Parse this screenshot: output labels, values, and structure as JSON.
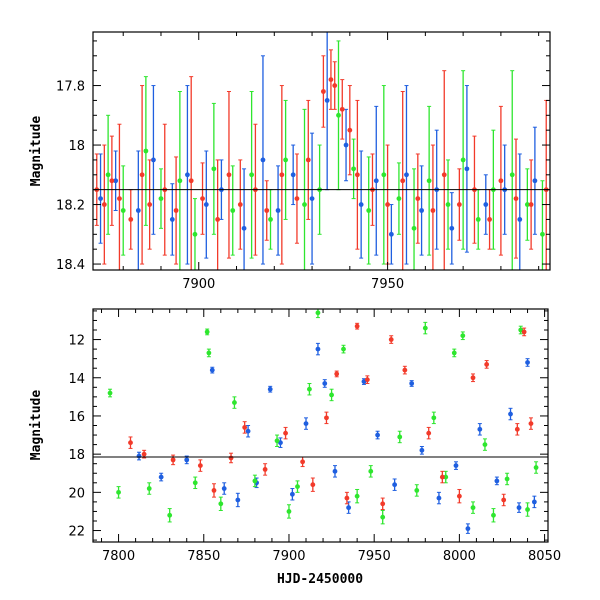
{
  "colors": {
    "blue": "#1f5fe0",
    "green": "#2ee62e",
    "red": "#f23a2a",
    "axis": "#000000"
  },
  "chart_data": [
    {
      "type": "scatter",
      "panel": "top",
      "xlabel": "",
      "ylabel": "Magnitude",
      "xlim": [
        7872,
        7993
      ],
      "ylim": [
        18.42,
        17.62
      ],
      "y_inverted": true,
      "grid": false,
      "reference_line_y": 18.15,
      "xticks": [
        7900,
        7950
      ],
      "yticks": [
        17.8,
        18,
        18.2,
        18.4
      ],
      "xtick_labels": [
        "7900",
        "7950"
      ],
      "ytick_labels": [
        "17.8",
        "18",
        "18.2",
        "18.4"
      ],
      "series": [
        {
          "color": "blue",
          "x": [
            7874,
            7878,
            7884,
            7888,
            7893,
            7897,
            7902,
            7906,
            7912,
            7917,
            7921,
            7925,
            7930,
            7934,
            7939,
            7943,
            7947,
            7951,
            7955,
            7959,
            7963,
            7967,
            7971,
            7976,
            7981,
            7985,
            7989
          ],
          "y": [
            18.18,
            18.12,
            18.22,
            18.05,
            18.25,
            18.1,
            18.2,
            18.15,
            18.28,
            18.05,
            18.22,
            18.1,
            18.18,
            17.85,
            18.0,
            18.2,
            18.12,
            18.3,
            18.1,
            18.22,
            18.15,
            18.28,
            18.08,
            18.2,
            18.15,
            18.25,
            18.12
          ],
          "yerr": [
            0.15,
            0.1,
            0.2,
            0.25,
            0.12,
            0.3,
            0.18,
            0.1,
            0.2,
            0.35,
            0.15,
            0.1,
            0.22,
            0.3,
            0.12,
            0.18,
            0.25,
            0.1,
            0.3,
            0.15,
            0.2,
            0.12,
            0.28,
            0.1,
            0.15,
            0.22,
            0.18
          ]
        },
        {
          "color": "green",
          "x": [
            7876,
            7880,
            7886,
            7890,
            7895,
            7899,
            7904,
            7909,
            7914,
            7919,
            7923,
            7928,
            7932,
            7937,
            7941,
            7945,
            7949,
            7953,
            7957,
            7961,
            7966,
            7970,
            7974,
            7978,
            7983,
            7987,
            7991
          ],
          "y": [
            18.1,
            18.22,
            18.02,
            18.18,
            18.12,
            18.3,
            18.08,
            18.22,
            18.1,
            18.25,
            18.05,
            18.2,
            18.15,
            17.9,
            18.08,
            18.22,
            18.1,
            18.18,
            18.28,
            18.12,
            18.2,
            18.05,
            18.25,
            18.15,
            18.1,
            18.2,
            18.3
          ],
          "yerr": [
            0.2,
            0.15,
            0.25,
            0.1,
            0.3,
            0.12,
            0.22,
            0.15,
            0.28,
            0.1,
            0.2,
            0.32,
            0.15,
            0.25,
            0.1,
            0.18,
            0.3,
            0.12,
            0.2,
            0.25,
            0.15,
            0.3,
            0.1,
            0.2,
            0.35,
            0.12,
            0.18
          ]
        },
        {
          "color": "red",
          "x": [
            7873,
            7875,
            7877,
            7879,
            7882,
            7885,
            7887,
            7891,
            7894,
            7898,
            7901,
            7905,
            7908,
            7911,
            7915,
            7918,
            7922,
            7926,
            7929,
            7933,
            7935,
            7936,
            7938,
            7940,
            7942,
            7946,
            7950,
            7954,
            7958,
            7962,
            7965,
            7969,
            7973,
            7977,
            7980,
            7984,
            7988,
            7992
          ],
          "y": [
            18.15,
            18.2,
            18.12,
            18.18,
            18.25,
            18.1,
            18.2,
            18.15,
            18.22,
            18.12,
            18.18,
            18.25,
            18.1,
            18.2,
            18.15,
            18.22,
            18.1,
            18.18,
            18.05,
            17.82,
            17.78,
            17.8,
            17.88,
            17.95,
            18.1,
            18.15,
            18.2,
            18.12,
            18.18,
            18.22,
            18.1,
            18.2,
            18.15,
            18.25,
            18.12,
            18.18,
            18.2,
            18.15
          ],
          "yerr": [
            0.12,
            0.2,
            0.15,
            0.25,
            0.1,
            0.3,
            0.15,
            0.22,
            0.18,
            0.35,
            0.12,
            0.2,
            0.28,
            0.15,
            0.22,
            0.1,
            0.3,
            0.15,
            0.2,
            0.12,
            0.1,
            0.08,
            0.1,
            0.15,
            0.25,
            0.12,
            0.2,
            0.3,
            0.15,
            0.22,
            0.35,
            0.12,
            0.18,
            0.1,
            0.25,
            0.2,
            0.15,
            0.3
          ]
        }
      ]
    },
    {
      "type": "scatter",
      "panel": "bottom",
      "xlabel": "HJD-2450000",
      "ylabel": "Magnitude",
      "xlim": [
        7785,
        8052
      ],
      "ylim": [
        22.6,
        10.4
      ],
      "y_inverted": true,
      "grid": false,
      "reference_line_y": 18.15,
      "xticks": [
        7800,
        7850,
        7900,
        7950,
        8000,
        8050
      ],
      "yticks": [
        12,
        14,
        16,
        18,
        20,
        22
      ],
      "xtick_labels": [
        "7800",
        "7850",
        "7900",
        "7950",
        "8000",
        "8050"
      ],
      "ytick_labels": [
        "12",
        "14",
        "16",
        "18",
        "20",
        "22"
      ],
      "series": [
        {
          "color": "blue",
          "x": [
            7812,
            7825,
            7840,
            7855,
            7862,
            7870,
            7876,
            7881,
            7889,
            7895,
            7902,
            7910,
            7917,
            7921,
            7927,
            7935,
            7944,
            7952,
            7962,
            7972,
            7978,
            7988,
            7998,
            8005,
            8012,
            8022,
            8030,
            8035,
            8040,
            8044
          ],
          "y": [
            18.1,
            19.2,
            18.3,
            13.6,
            19.8,
            20.4,
            16.8,
            19.5,
            14.6,
            17.4,
            20.1,
            16.4,
            12.5,
            14.3,
            18.9,
            20.8,
            14.2,
            17.0,
            19.6,
            14.3,
            17.8,
            20.3,
            18.6,
            21.9,
            16.7,
            19.4,
            15.9,
            20.8,
            13.2,
            20.5
          ],
          "yerr": [
            0.2,
            0.2,
            0.2,
            0.15,
            0.3,
            0.35,
            0.3,
            0.25,
            0.15,
            0.25,
            0.3,
            0.3,
            0.3,
            0.2,
            0.3,
            0.3,
            0.15,
            0.2,
            0.3,
            0.15,
            0.2,
            0.3,
            0.2,
            0.25,
            0.3,
            0.2,
            0.3,
            0.25,
            0.2,
            0.3
          ]
        },
        {
          "color": "green",
          "x": [
            7795,
            7800,
            7818,
            7830,
            7845,
            7852,
            7853,
            7860,
            7868,
            7880,
            7893,
            7900,
            7905,
            7912,
            7917,
            7925,
            7932,
            7940,
            7948,
            7955,
            7965,
            7975,
            7980,
            7985,
            7992,
            7997,
            8002,
            8008,
            8015,
            8020,
            8028,
            8036,
            8040,
            8045
          ],
          "y": [
            14.8,
            20.0,
            19.8,
            21.2,
            19.5,
            11.6,
            12.7,
            20.6,
            15.3,
            19.4,
            17.3,
            21.0,
            19.7,
            14.6,
            10.6,
            14.9,
            12.5,
            20.2,
            18.9,
            21.3,
            17.1,
            19.9,
            11.4,
            16.1,
            19.2,
            12.7,
            11.8,
            20.8,
            17.5,
            21.2,
            19.3,
            11.5,
            20.9,
            18.7
          ],
          "yerr": [
            0.2,
            0.3,
            0.3,
            0.35,
            0.3,
            0.15,
            0.2,
            0.35,
            0.3,
            0.3,
            0.3,
            0.35,
            0.3,
            0.3,
            0.25,
            0.3,
            0.2,
            0.35,
            0.3,
            0.35,
            0.3,
            0.3,
            0.3,
            0.3,
            0.3,
            0.2,
            0.2,
            0.3,
            0.3,
            0.35,
            0.3,
            0.2,
            0.35,
            0.3
          ]
        },
        {
          "color": "red",
          "x": [
            7807,
            7815,
            7832,
            7848,
            7856,
            7866,
            7874,
            7886,
            7898,
            7908,
            7914,
            7922,
            7928,
            7934,
            7940,
            7946,
            7955,
            7960,
            7968,
            7982,
            7990,
            8000,
            8008,
            8016,
            8026,
            8034,
            8038,
            8042
          ],
          "y": [
            17.4,
            18.0,
            18.3,
            18.6,
            19.9,
            18.2,
            16.6,
            18.8,
            16.9,
            18.4,
            19.6,
            16.1,
            13.8,
            20.3,
            11.3,
            14.1,
            20.6,
            12.0,
            13.6,
            16.9,
            19.2,
            20.2,
            14.0,
            13.3,
            20.4,
            16.7,
            11.6,
            16.4
          ],
          "yerr": [
            0.3,
            0.2,
            0.25,
            0.3,
            0.35,
            0.25,
            0.3,
            0.3,
            0.3,
            0.25,
            0.35,
            0.3,
            0.15,
            0.3,
            0.15,
            0.2,
            0.3,
            0.2,
            0.2,
            0.3,
            0.3,
            0.35,
            0.2,
            0.2,
            0.3,
            0.3,
            0.2,
            0.3
          ]
        }
      ]
    }
  ]
}
